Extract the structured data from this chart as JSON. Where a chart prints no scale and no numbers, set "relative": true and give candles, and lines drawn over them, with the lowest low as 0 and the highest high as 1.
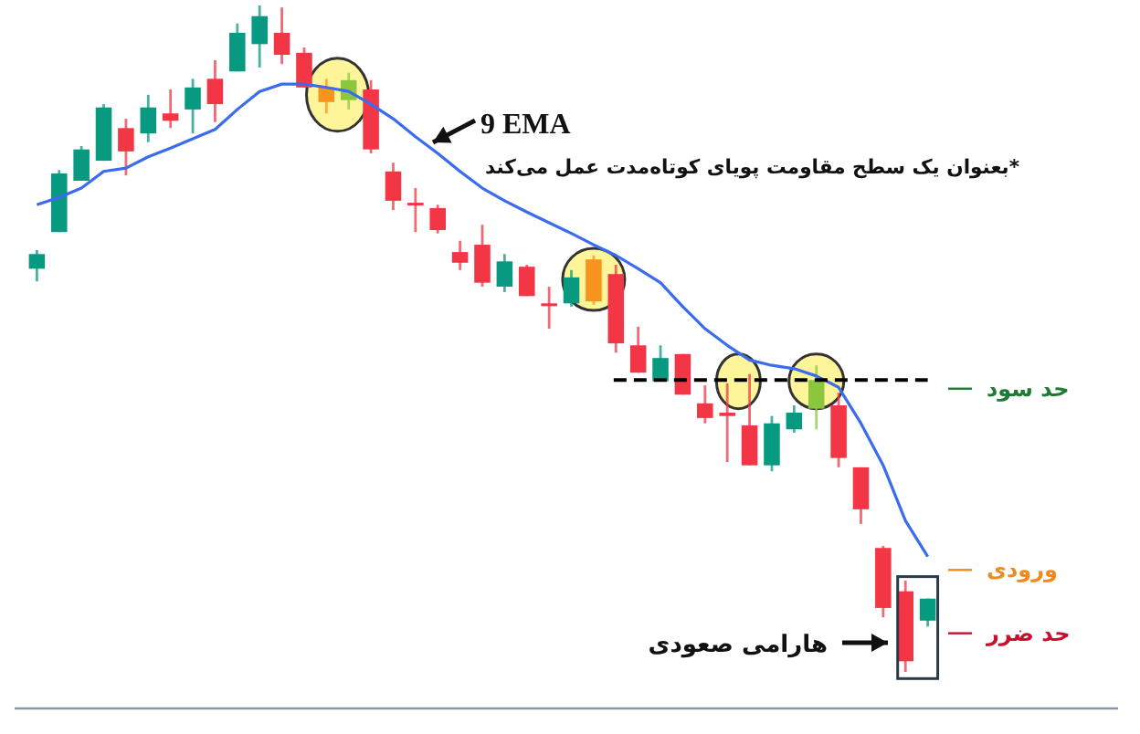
{
  "chart_data": {
    "type": "candlestick",
    "relative": true,
    "categories": [
      null,
      null,
      null,
      null,
      null,
      null,
      null,
      null,
      null,
      null,
      null,
      null,
      null,
      null,
      null,
      null,
      null,
      null,
      null,
      null,
      null,
      null,
      null,
      null,
      null,
      null,
      null,
      null,
      null,
      null,
      null,
      null,
      null,
      null,
      null,
      null,
      null,
      null,
      null,
      null,
      null
    ],
    "ohlc": [
      [
        0.605,
        0.633,
        0.586,
        0.627
      ],
      [
        0.66,
        0.753,
        0.66,
        0.748
      ],
      [
        0.737,
        0.789,
        0.737,
        0.784
      ],
      [
        0.767,
        0.852,
        0.767,
        0.847
      ],
      [
        0.816,
        0.83,
        0.745,
        0.781
      ],
      [
        0.808,
        0.866,
        0.795,
        0.847
      ],
      [
        0.838,
        0.874,
        0.816,
        0.827
      ],
      [
        0.844,
        0.89,
        0.808,
        0.877
      ],
      [
        0.89,
        0.918,
        0.825,
        0.852
      ],
      [
        0.901,
        0.973,
        0.901,
        0.959
      ],
      [
        0.942,
        1,
        0.907,
        0.984
      ],
      [
        0.959,
        0.997,
        0.912,
        0.926
      ],
      [
        0.929,
        0.937,
        0.877,
        0.877
      ],
      [
        0.877,
        0.89,
        0.838,
        0.855
      ],
      [
        0.858,
        0.899,
        0.844,
        0.888
      ],
      [
        0.874,
        0.888,
        0.778,
        0.784
      ],
      [
        0.751,
        0.764,
        0.693,
        0.707
      ],
      [
        0.704,
        0.726,
        0.66,
        0.701
      ],
      [
        0.696,
        0.701,
        0.658,
        0.663
      ],
      [
        0.63,
        0.647,
        0.603,
        0.614
      ],
      [
        0.641,
        0.671,
        0.578,
        0.584
      ],
      [
        0.578,
        0.627,
        0.57,
        0.616
      ],
      [
        0.608,
        0.611,
        0.564,
        0.564
      ],
      [
        0.553,
        0.578,
        0.515,
        0.551
      ],
      [
        0.553,
        0.603,
        0.548,
        0.592
      ],
      [
        0.619,
        0.625,
        0.551,
        0.556
      ],
      [
        0.597,
        0.611,
        0.479,
        0.493
      ],
      [
        0.49,
        0.518,
        0.449,
        0.449
      ],
      [
        0.436,
        0.49,
        0.436,
        0.471
      ],
      [
        0.477,
        0.477,
        0.416,
        0.416
      ],
      [
        0.403,
        0.43,
        0.373,
        0.381
      ],
      [
        0.389,
        0.433,
        0.315,
        0.384
      ],
      [
        0.37,
        0.447,
        0.31,
        0.31
      ],
      [
        0.31,
        0.384,
        0.301,
        0.373
      ],
      [
        0.364,
        0.4,
        0.359,
        0.389
      ],
      [
        0.395,
        0.46,
        0.364,
        0.438
      ],
      [
        0.4,
        0.419,
        0.307,
        0.321
      ],
      [
        0.307,
        0.307,
        0.222,
        0.244
      ],
      [
        0.186,
        0.189,
        0.082,
        0.096
      ],
      [
        0.121,
        0.137,
        0,
        0.016
      ],
      [
        0.077,
        0.11,
        0.068,
        0.11
      ]
    ],
    "colors": [
      "#089981",
      "#089981",
      "#089981",
      "#089981",
      "#f23645",
      "#089981",
      "#f23645",
      "#089981",
      "#f23645",
      "#089981",
      "#089981",
      "#f23645",
      "#f23645",
      "#f7941d",
      "#8cc63f",
      "#f23645",
      "#f23645",
      "#f23645",
      "#f23645",
      "#f23645",
      "#f23645",
      "#089981",
      "#f23645",
      "#f23645",
      "#089981",
      "#f7941d",
      "#f23645",
      "#f23645",
      "#089981",
      "#f23645",
      "#f23645",
      "#f23645",
      "#f23645",
      "#089981",
      "#089981",
      "#8cc63f",
      "#f23645",
      "#f23645",
      "#f23645",
      "#f23645",
      "#089981"
    ],
    "series": [
      {
        "type": "line",
        "color": "#3b6cf0",
        "values": [
          0.701,
          0.712,
          0.726,
          0.751,
          0.756,
          0.773,
          0.786,
          0.8,
          0.814,
          0.844,
          0.871,
          0.882,
          0.882,
          0.877,
          0.871,
          0.852,
          0.83,
          0.803,
          0.778,
          0.751,
          0.726,
          0.707,
          0.69,
          0.674,
          0.658,
          0.641,
          0.625,
          0.605,
          0.584,
          0.548,
          0.515,
          0.49,
          0.468,
          0.46,
          0.455,
          0.444,
          0.427,
          0.373,
          0.31,
          0.227,
          0.173
        ]
      }
    ],
    "ref_lines": [
      {
        "axis": "y",
        "value": 0.438,
        "color": "#000000",
        "line_style": "dashed"
      },
      {
        "axis": "y",
        "value": 0.425,
        "label": "حد سود",
        "color": "#1e7b34"
      },
      {
        "axis": "y",
        "value": 0.153,
        "label": "ورودی",
        "color": "#f08a1c"
      },
      {
        "axis": "y",
        "value": 0.058,
        "label": "حد ضرر",
        "color": "#c8102e"
      }
    ],
    "annotations": [
      "9 EMA",
      "*بعنوان یک سطح مقاومت پویای کوتاه‌مدت عمل می‌کند",
      "هارامی صعودی"
    ]
  }
}
